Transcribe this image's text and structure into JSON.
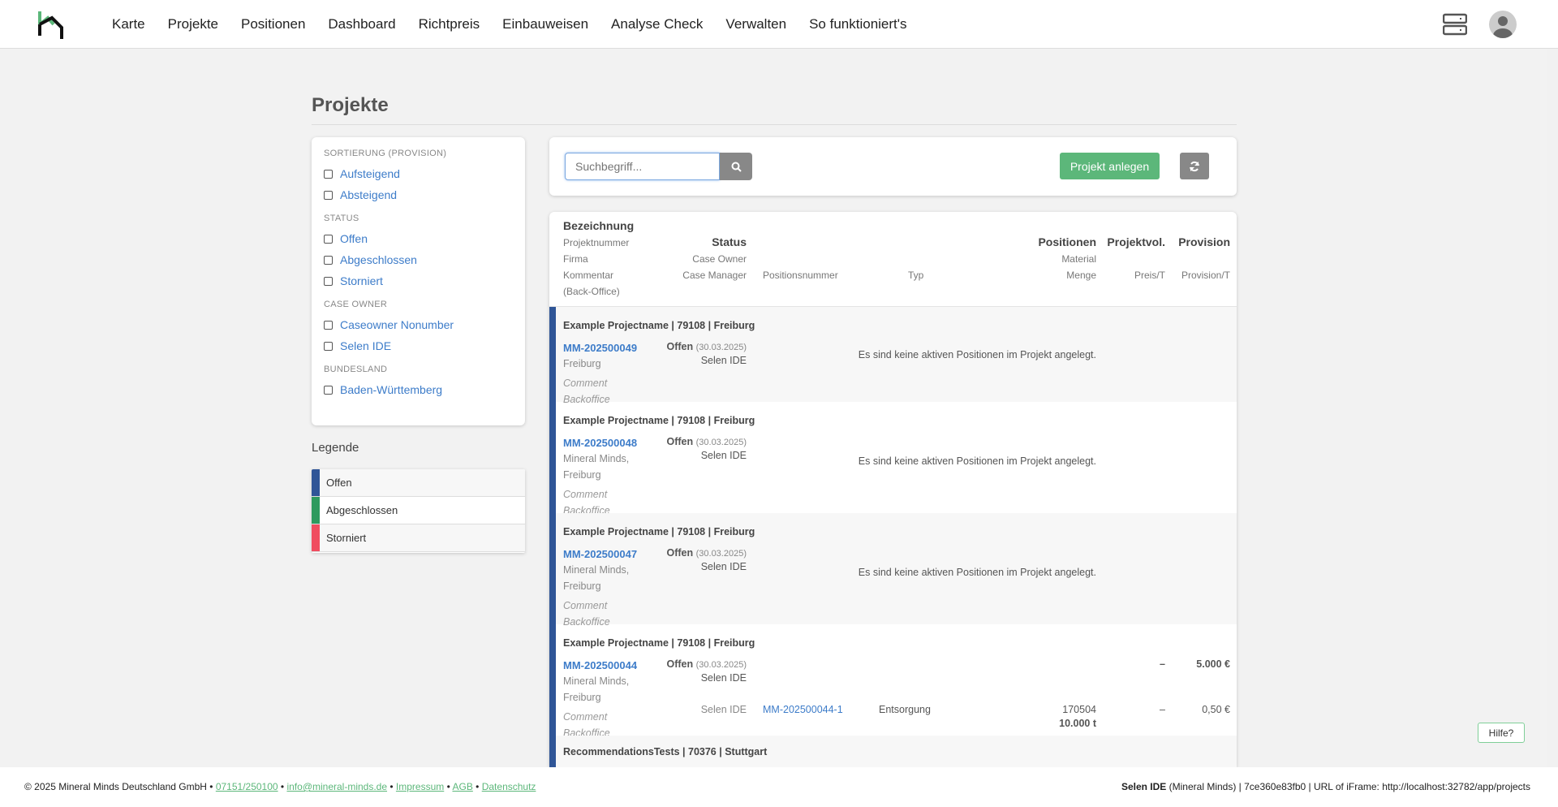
{
  "nav": {
    "items": [
      "Karte",
      "Projekte",
      "Positionen",
      "Dashboard",
      "Richtpreis",
      "Einbauweisen",
      "Analyse Check",
      "Verwalten",
      "So funktioniert's"
    ],
    "icons": [
      "server-icon",
      "avatar-icon"
    ]
  },
  "page": {
    "title": "Projekte"
  },
  "filters": {
    "groups": [
      {
        "label": "SORTIERUNG (PROVISION)",
        "items": [
          "Aufsteigend",
          "Absteigend"
        ]
      },
      {
        "label": "STATUS",
        "items": [
          "Offen",
          "Abgeschlossen",
          "Storniert"
        ]
      },
      {
        "label": "CASE OWNER",
        "items": [
          "Caseowner Nonumber",
          "Selen IDE"
        ]
      },
      {
        "label": "BUNDESLAND",
        "items": [
          "Baden-Württemberg"
        ]
      }
    ]
  },
  "legend": {
    "title": "Legende",
    "items": [
      {
        "label": "Offen",
        "color": "#2f5597"
      },
      {
        "label": "Abgeschlossen",
        "color": "#2e9a5e"
      },
      {
        "label": "Storniert",
        "color": "#f04c5f"
      }
    ]
  },
  "toolbar": {
    "search_placeholder": "Suchbegriff...",
    "new_project": "Projekt anlegen"
  },
  "table": {
    "headers": {
      "bezeichnung": "Bezeichnung",
      "projektnummer": "Projektnummer",
      "firma": "Firma",
      "kommentar": "Kommentar",
      "backoffice": "(Back-Office)",
      "status": "Status",
      "case_owner": "Case Owner",
      "case_manager": "Case Manager",
      "positionsnummer": "Positionsnummer",
      "typ": "Typ",
      "positionen": "Positionen",
      "material": "Material",
      "menge": "Menge",
      "projektvol": "Projektvol.",
      "preis": "Preis/T",
      "provision": "Provision",
      "provision_t": "Provision/T"
    },
    "rows": [
      {
        "title": "Example Projectname | 79108 | Freiburg",
        "number": "MM-202500049",
        "firma": [
          "Freiburg"
        ],
        "comment": [
          "Comment",
          "Backoffice"
        ],
        "status": "Offen",
        "date": "(30.03.2025)",
        "owner": "Selen IDE",
        "empty": "Es sind keine aktiven Positionen im Projekt angelegt."
      },
      {
        "title": "Example Projectname | 79108 | Freiburg",
        "number": "MM-202500048",
        "firma": [
          "Mineral Minds,",
          "Freiburg"
        ],
        "comment": [
          "Comment",
          "Backoffice"
        ],
        "status": "Offen",
        "date": "(30.03.2025)",
        "owner": "Selen IDE",
        "empty": "Es sind keine aktiven Positionen im Projekt angelegt."
      },
      {
        "title": "Example Projectname | 79108 | Freiburg",
        "number": "MM-202500047",
        "firma": [
          "Mineral Minds,",
          "Freiburg"
        ],
        "comment": [
          "Comment",
          "Backoffice"
        ],
        "status": "Offen",
        "date": "(30.03.2025)",
        "owner": "Selen IDE",
        "empty": "Es sind keine aktiven Positionen im Projekt angelegt."
      },
      {
        "title": "Example Projectname | 79108 | Freiburg",
        "number": "MM-202500044",
        "firma": [
          "Mineral Minds,",
          "Freiburg"
        ],
        "comment": [
          "Comment",
          "Backoffice"
        ],
        "status": "Offen",
        "date": "(30.03.2025)",
        "owner": "Selen IDE",
        "projektvol": "–",
        "provision": "5.000 €",
        "position": {
          "manager": "Selen IDE",
          "number": "MM-202500044-1",
          "typ": "Entsorgung",
          "material": "170504",
          "menge": "10.000 t",
          "preis": "–",
          "provision_t": "0,50 €"
        }
      },
      {
        "title": "RecommendationsTests | 70376 | Stuttgart"
      }
    ]
  },
  "footer": {
    "copyright": "© 2025 Mineral Minds Deutschland GmbH •",
    "phone": "07151/250100",
    "email": "info@mineral-minds.de",
    "impressum": "Impressum",
    "agb": "AGB",
    "datenschutz": "Datenschutz",
    "sep": "•",
    "user": "Selen IDE",
    "user_rest": "(Mineral Minds) | 7ce360e83fb0 | URL of iFrame: http://localhost:32782/app/projects"
  },
  "help": "Hilfe?"
}
